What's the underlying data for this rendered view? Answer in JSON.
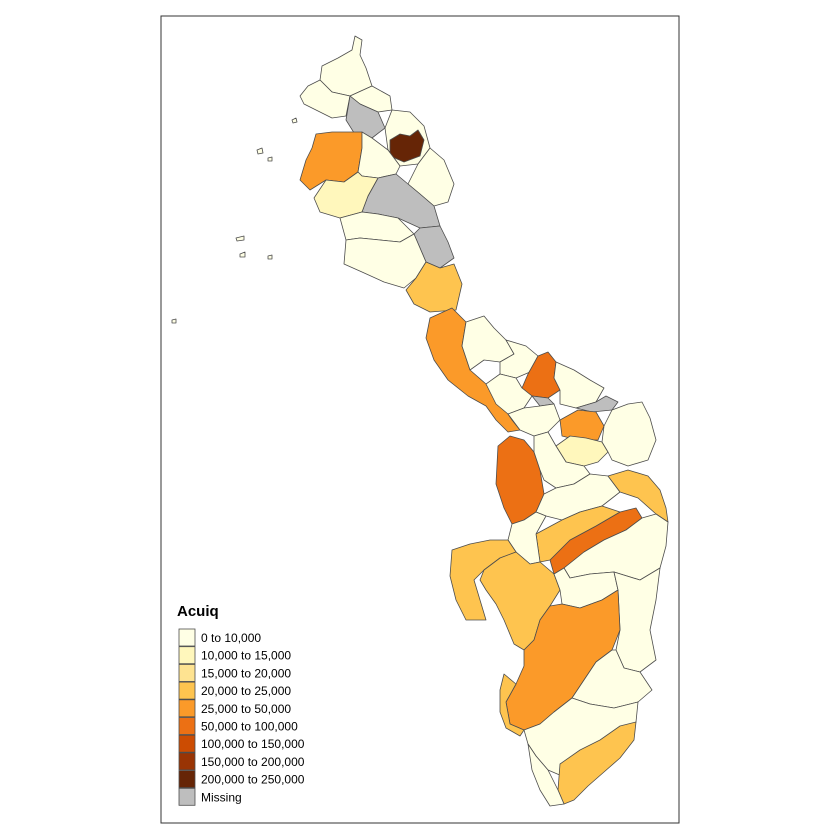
{
  "legend": {
    "title": "Acuiq",
    "items": [
      {
        "label": "0 to 10,000",
        "color": "#ffffe5"
      },
      {
        "label": "10,000 to 15,000",
        "color": "#fff7bc"
      },
      {
        "label": "15,000 to 20,000",
        "color": "#fee391"
      },
      {
        "label": "20,000 to 25,000",
        "color": "#fec44f"
      },
      {
        "label": "25,000 to 50,000",
        "color": "#fb9a29"
      },
      {
        "label": "50,000 to 100,000",
        "color": "#ec7014"
      },
      {
        "label": "100,000 to 150,000",
        "color": "#cc4c02"
      },
      {
        "label": "150,000 to 200,000",
        "color": "#993404"
      },
      {
        "label": "200,000 to 250,000",
        "color": "#662506"
      },
      {
        "label": "Missing",
        "color": "#bebebe"
      }
    ]
  }
}
